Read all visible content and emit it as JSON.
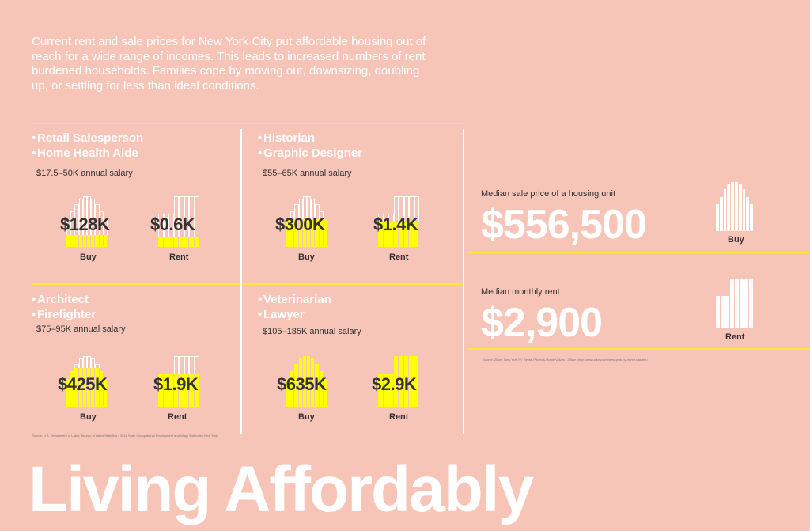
{
  "intro": "Current rent and sale prices for New York City put affordable housing out of reach for a wide range of incomes. This leads to increased numbers of rent burdened households. Families cope by moving out, downsizing, doubling up, or settling for less than ideal conditions.",
  "panels": [
    {
      "jobs": [
        "Retail Salesperson",
        "Home Health Aide"
      ],
      "salary": "$17.5–50K annual salary",
      "buy": "$128K",
      "rent": "$0.6K",
      "buy_afford": 0.23,
      "rent_afford": 0.21
    },
    {
      "jobs": [
        "Historian",
        "Graphic Designer"
      ],
      "salary": "$55–65K annual salary",
      "buy": "$300K",
      "rent": "$1.4K",
      "buy_afford": 0.54,
      "rent_afford": 0.48
    },
    {
      "jobs": [
        "Architect",
        "Firefighter"
      ],
      "salary": "$75–95K annual salary",
      "buy": "$425K",
      "rent": "$1.9K",
      "buy_afford": 0.76,
      "rent_afford": 0.66
    },
    {
      "jobs": [
        "Veterinarian",
        "Lawyer"
      ],
      "salary": "$105–185K annual salary",
      "buy": "$635K",
      "rent": "$2.9K",
      "buy_afford": 1.0,
      "rent_afford": 1.0
    }
  ],
  "labels": {
    "buy": "Buy",
    "rent": "Rent",
    "bullet": "•"
  },
  "stats": {
    "sale_label": "Median sale price of a housing unit",
    "sale_value": "$556,500",
    "rent_label": "Median monthly rent",
    "rent_value": "$2,900",
    "buy_caption": "Buy",
    "rent_caption": "Rent"
  },
  "sources": {
    "left": "Source: U.S. Department of Labor, Bureau of Labor Statistics • 2016 State Occupational Employment and Wage Estimates New York",
    "right": "Source: Zillow, New York NY Rental Prices & Home Values | Zillow <http://www.zillow.com/new-york-ny-home-values/>"
  },
  "title": "Living Affordably",
  "colors": {
    "background": "#f7c5b8",
    "accent": "#ffe82e",
    "bar_fill": "#ffff00"
  }
}
